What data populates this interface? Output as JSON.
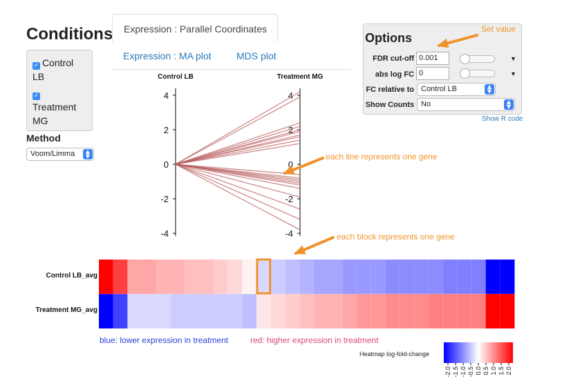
{
  "sidebar": {
    "title": "Conditions",
    "conditions": [
      {
        "label_line1": "Control",
        "label_line2": "LB",
        "checked": true
      },
      {
        "label_line1": "Treatment",
        "label_line2": "MG",
        "checked": true
      }
    ],
    "method_label": "Method",
    "method_value": "Voom/Limma"
  },
  "tabs": {
    "active": "Expression : Parallel Coordinates",
    "links": [
      "Expression : MA plot",
      "MDS plot"
    ]
  },
  "options": {
    "title": "Options",
    "fdr_label": "FDR cut-off",
    "fdr_value": "0.001",
    "abslogfc_label": "abs log FC",
    "abslogfc_value": "0",
    "fc_relative_label": "FC relative to",
    "fc_relative_value": "Control LB",
    "show_counts_label": "Show Counts",
    "show_counts_value": "No",
    "show_r_code": "Show R code"
  },
  "annotations": {
    "set_value": "Set value",
    "each_line": "each line represents one gene",
    "each_block": "each block represents one gene"
  },
  "heatmap_legend": {
    "blue_text": "blue: lower expression in treatment",
    "red_text": "red: higher expression in treatment",
    "colorbar_title": "Heatmap log-fold-change",
    "colorbar_ticks": [
      "-2.0",
      "-1.5",
      "-1.0",
      "-0.5",
      "0.0",
      "0.5",
      "1.0",
      "1.5",
      "2.0"
    ]
  },
  "colors": {
    "accent_orange": "#f0922b",
    "link_blue": "#2a7ab8",
    "blue_text": "#2b3fd6",
    "red_text": "#d8467a",
    "line_color": "#b85a5a"
  },
  "chart_data": [
    {
      "type": "line",
      "subtype": "parallel-coordinates",
      "axes": [
        "Control LB",
        "Treatment MG"
      ],
      "ylim": [
        -4,
        4
      ],
      "ticks": [
        "4",
        "2",
        "0",
        "-2",
        "-4"
      ],
      "series_values_treatment": [
        4.2,
        3.9,
        2.4,
        2.2,
        2.0,
        1.9,
        1.7,
        1.6,
        1.4,
        1.2,
        -0.6,
        -0.8,
        -0.9,
        -1.0,
        -1.1,
        -1.2,
        -1.4,
        -1.9,
        -2.6,
        -3.2,
        -3.8
      ],
      "series_values_control": 0
    },
    {
      "type": "heatmap",
      "rows": [
        "Control LB_avg",
        "Treatment MG_avg"
      ],
      "values_row1": [
        2.0,
        1.5,
        0.7,
        0.7,
        0.6,
        0.6,
        0.5,
        0.5,
        0.4,
        0.3,
        0.1,
        -0.3,
        -0.4,
        -0.5,
        -0.6,
        -0.7,
        -0.7,
        -0.8,
        -0.8,
        -0.8,
        -0.9,
        -0.9,
        -0.9,
        -0.9,
        -1.0,
        -1.0,
        -1.0,
        -2.0,
        -2.0
      ],
      "values_row2": [
        -2.0,
        -1.5,
        -0.3,
        -0.3,
        -0.3,
        -0.4,
        -0.4,
        -0.4,
        -0.4,
        -0.4,
        -0.5,
        0.2,
        0.3,
        0.4,
        0.5,
        0.6,
        0.6,
        0.7,
        0.8,
        0.8,
        0.9,
        0.9,
        0.9,
        1.0,
        1.0,
        1.0,
        1.0,
        2.0,
        2.0
      ],
      "highlighted_index": 11,
      "colorbar_range": [
        -2.0,
        2.0
      ]
    }
  ]
}
